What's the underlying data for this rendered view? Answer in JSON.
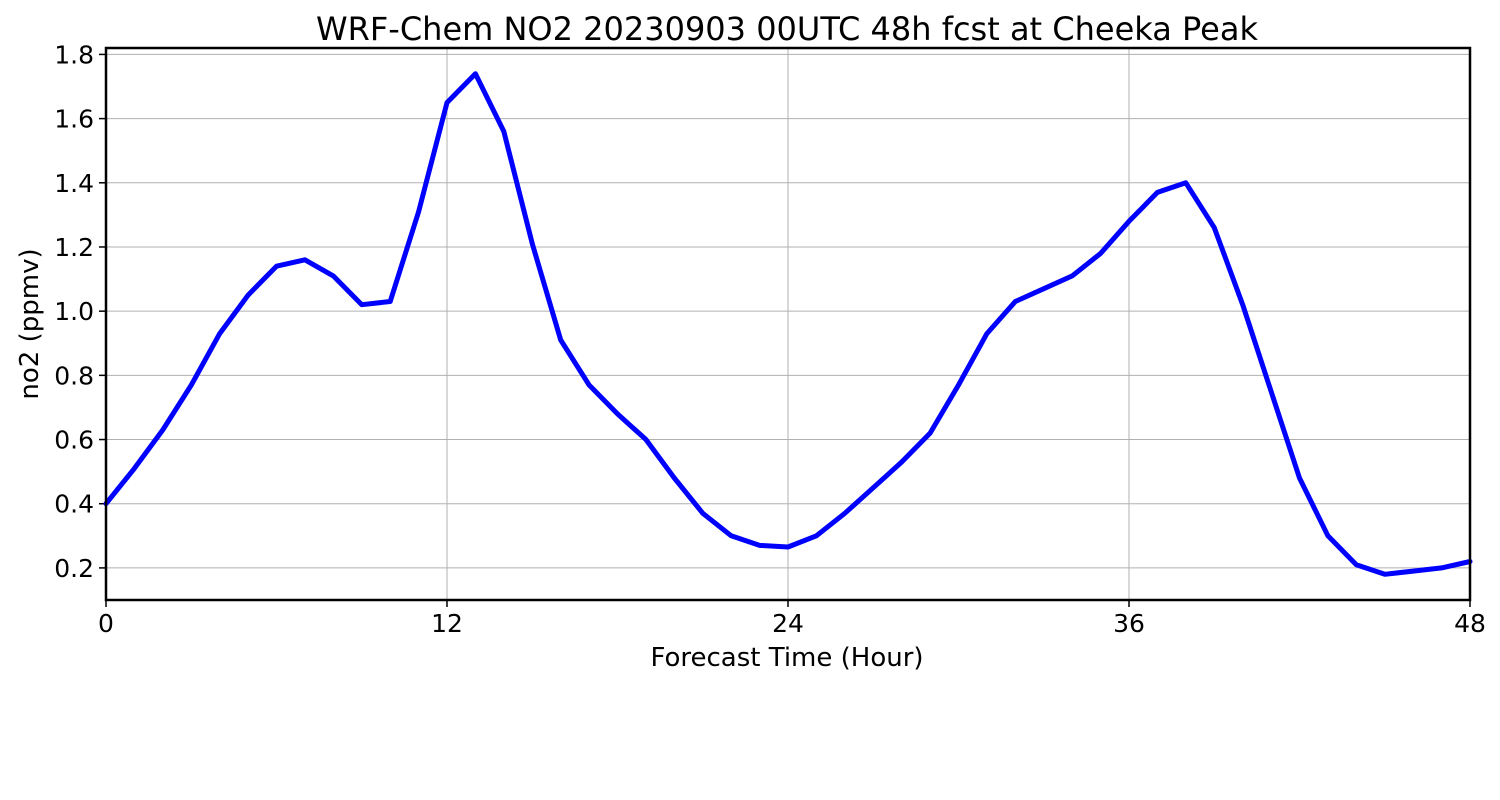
{
  "chart_data": {
    "type": "line",
    "title": "WRF-Chem NO2  20230903 00UTC 48h fcst at Cheeka Peak",
    "xlabel": "Forecast Time (Hour)",
    "ylabel": "no2  (ppmv)",
    "xlim": [
      0,
      48
    ],
    "ylim": [
      0.1,
      1.82
    ],
    "xticks": [
      0,
      12,
      24,
      36,
      48
    ],
    "yticks": [
      0.2,
      0.4,
      0.6,
      0.8,
      1.0,
      1.2,
      1.4,
      1.6,
      1.8
    ],
    "ytick_labels": [
      "0.2",
      "0.4",
      "0.6",
      "0.8",
      "1.0",
      "1.2",
      "1.4",
      "1.6",
      "1.8"
    ],
    "grid": true,
    "line_color": "#0000ff",
    "series": [
      {
        "x": [
          0,
          1,
          2,
          3,
          4,
          5,
          6,
          7,
          8,
          9,
          10,
          11,
          12,
          13,
          14,
          15,
          16,
          17,
          18,
          19,
          20,
          21,
          22,
          23,
          24,
          25,
          26,
          27,
          28,
          29,
          30,
          31,
          32,
          33,
          34,
          35,
          36,
          37,
          38,
          39,
          40,
          41,
          42,
          43,
          44,
          45,
          46,
          47,
          48
        ],
        "values": [
          0.4,
          0.51,
          0.63,
          0.77,
          0.93,
          1.05,
          1.14,
          1.16,
          1.11,
          1.02,
          1.03,
          1.31,
          1.65,
          1.74,
          1.56,
          1.21,
          0.91,
          0.77,
          0.68,
          0.6,
          0.48,
          0.37,
          0.3,
          0.27,
          0.265,
          0.3,
          0.37,
          0.45,
          0.53,
          0.62,
          0.77,
          0.93,
          1.03,
          1.07,
          1.11,
          1.18,
          1.28,
          1.37,
          1.4,
          1.26,
          1.02,
          0.75,
          0.48,
          0.3,
          0.21,
          0.18,
          0.19,
          0.2,
          0.22
        ]
      }
    ]
  }
}
